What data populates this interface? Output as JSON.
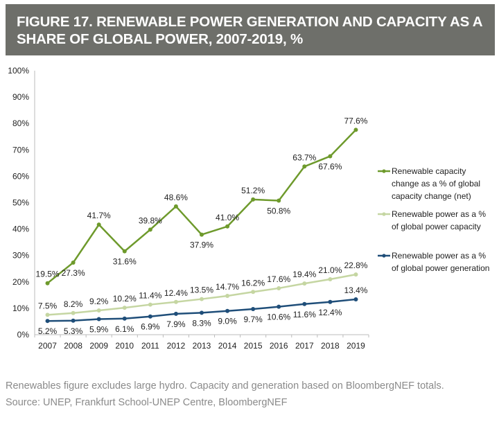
{
  "title": "FIGURE 17. RENEWABLE POWER GENERATION AND CAPACITY AS A SHARE OF GLOBAL POWER, 2007-2019, %",
  "footnote": "Renewables figure excludes large hydro. Capacity and generation based on BloombergNEF totals.",
  "source": "Source: UNEP, Frankfurt School-UNEP Centre, BloombergNEF",
  "chart_data": {
    "type": "line",
    "x": [
      "2007",
      "2008",
      "2009",
      "2010",
      "2011",
      "2012",
      "2013",
      "2014",
      "2015",
      "2016",
      "2017",
      "2018",
      "2019"
    ],
    "ylim": [
      0,
      100
    ],
    "yticks": [
      "0%",
      "10%",
      "20%",
      "30%",
      "40%",
      "50%",
      "60%",
      "70%",
      "80%",
      "90%",
      "100%"
    ],
    "grid": false,
    "legend": "right",
    "series": [
      {
        "name": "Renewable capacity change as a % of global capacity change (net)",
        "legend_lines": [
          "Renewable capacity",
          "change as a % of global",
          "capacity change (net)"
        ],
        "color": "#6e9a2c",
        "values": [
          19.5,
          27.3,
          41.7,
          31.6,
          39.8,
          48.6,
          37.9,
          41.0,
          51.2,
          50.8,
          63.7,
          67.6,
          77.6
        ],
        "labels": [
          "19.5%",
          "27.3%",
          "41.7%",
          "31.6%",
          "39.8%",
          "48.6%",
          "37.9%",
          "41.0%",
          "51.2%",
          "50.8%",
          "63.7%",
          "67.6%",
          "77.6%"
        ]
      },
      {
        "name": "Renewable power as a % of global power capacity",
        "legend_lines": [
          "Renewable power as a %",
          "of global power capacity"
        ],
        "color": "#c5d6a2",
        "values": [
          7.5,
          8.2,
          9.2,
          10.2,
          11.4,
          12.4,
          13.5,
          14.7,
          16.2,
          17.6,
          19.4,
          21.0,
          22.8
        ],
        "labels": [
          "7.5%",
          "8.2%",
          "9.2%",
          "10.2%",
          "11.4%",
          "12.4%",
          "13.5%",
          "14.7%",
          "16.2%",
          "17.6%",
          "19.4%",
          "21.0%",
          "22.8%"
        ]
      },
      {
        "name": "Renewable power as a % of global power generation",
        "legend_lines": [
          "Renewable power as a %",
          "of global power generation"
        ],
        "color": "#1f4e79",
        "values": [
          5.2,
          5.3,
          5.9,
          6.1,
          6.9,
          7.9,
          8.3,
          9.0,
          9.7,
          10.6,
          11.6,
          12.4,
          13.4
        ],
        "labels": [
          "5.2%",
          "5.3%",
          "5.9%",
          "6.1%",
          "6.9%",
          "7.9%",
          "8.3%",
          "9.0%",
          "9.7%",
          "10.6%",
          "11.6%",
          "12.4%",
          "13.4%"
        ]
      }
    ]
  }
}
